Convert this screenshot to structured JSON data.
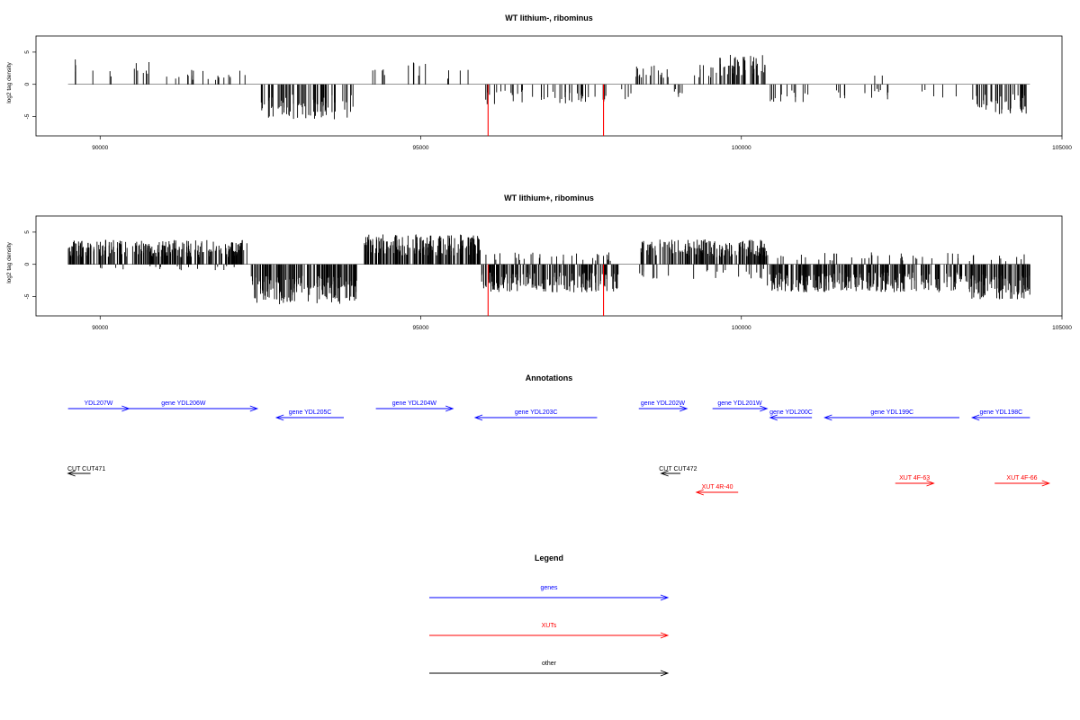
{
  "colors": {
    "genes": "#0000ff",
    "xuts": "#ff0000",
    "other": "#000000",
    "signal": "#000000",
    "highlight": "#ff0000"
  },
  "chart_data": [
    {
      "type": "bar",
      "title": "WT lithium-, ribominus",
      "ylabel": "log2 tag density",
      "xlim": [
        89000,
        105000
      ],
      "ylim": [
        -8,
        7.5
      ],
      "x_ticks": [
        90000,
        95000,
        100000,
        105000
      ],
      "y_ticks": [
        -5,
        0,
        5
      ],
      "baseline_range": [
        89500,
        104500
      ],
      "highlights": [
        {
          "x": 96050,
          "value": -8
        },
        {
          "x": 97850,
          "value": -8
        }
      ],
      "segments": [
        {
          "x0": 89550,
          "x1": 89650,
          "sign": 1,
          "mean": 2.5,
          "n": 3
        },
        {
          "x0": 89800,
          "x1": 90300,
          "sign": 1,
          "mean": 1.5,
          "n": 3
        },
        {
          "x0": 90500,
          "x1": 90800,
          "sign": 1,
          "mean": 2.5,
          "n": 7
        },
        {
          "x0": 90800,
          "x1": 92300,
          "sign": 1,
          "mean": 1.5,
          "n": 22
        },
        {
          "x0": 92500,
          "x1": 93950,
          "sign": -1,
          "mean": 3.5,
          "n": 75
        },
        {
          "x0": 94200,
          "x1": 94500,
          "sign": 1,
          "mean": 1.5,
          "n": 5
        },
        {
          "x0": 94800,
          "x1": 95100,
          "sign": 1,
          "mean": 2.5,
          "n": 6
        },
        {
          "x0": 95300,
          "x1": 95900,
          "sign": 1,
          "mean": 1.5,
          "n": 4
        },
        {
          "x0": 95950,
          "x1": 97900,
          "sign": -1,
          "mean": 2,
          "n": 45
        },
        {
          "x0": 98000,
          "x1": 98300,
          "sign": -1,
          "mean": 1.5,
          "n": 4
        },
        {
          "x0": 98350,
          "x1": 98950,
          "sign": 1,
          "mean": 2,
          "n": 18
        },
        {
          "x0": 98950,
          "x1": 99250,
          "sign": -1,
          "mean": 1.5,
          "n": 6
        },
        {
          "x0": 99250,
          "x1": 99550,
          "sign": 1,
          "mean": 2,
          "n": 8
        },
        {
          "x0": 99550,
          "x1": 100400,
          "sign": 1,
          "mean": 3,
          "n": 50
        },
        {
          "x0": 100400,
          "x1": 101100,
          "sign": -1,
          "mean": 2,
          "n": 14
        },
        {
          "x0": 101300,
          "x1": 102400,
          "sign": -1,
          "mean": 1.5,
          "n": 14
        },
        {
          "x0": 101750,
          "x1": 102500,
          "sign": 1,
          "mean": 1.5,
          "n": 2
        },
        {
          "x0": 102600,
          "x1": 103400,
          "sign": -1,
          "mean": 1.5,
          "n": 5
        },
        {
          "x0": 103600,
          "x1": 104450,
          "sign": -1,
          "mean": 3,
          "n": 45
        }
      ]
    },
    {
      "type": "bar",
      "title": "WT lithium+, ribominus",
      "ylabel": "log2 tag density",
      "xlim": [
        89000,
        105000
      ],
      "ylim": [
        -8,
        7.5
      ],
      "x_ticks": [
        90000,
        95000,
        100000,
        105000
      ],
      "y_ticks": [
        -5,
        0,
        5
      ],
      "baseline_range": [
        89500,
        104500
      ],
      "highlights": [
        {
          "x": 96050,
          "value": -8
        },
        {
          "x": 97850,
          "value": -8
        }
      ],
      "segments": [
        {
          "x0": 89500,
          "x1": 92300,
          "sign": 1,
          "mean": 2.5,
          "n": 260
        },
        {
          "x0": 89500,
          "x1": 92300,
          "sign": -1,
          "mean": 0.6,
          "n": 18
        },
        {
          "x0": 92350,
          "x1": 94000,
          "sign": -1,
          "mean": 4,
          "n": 160
        },
        {
          "x0": 94100,
          "x1": 95950,
          "sign": 1,
          "mean": 3,
          "n": 190
        },
        {
          "x0": 95950,
          "x1": 98100,
          "sign": -1,
          "mean": 2.8,
          "n": 180
        },
        {
          "x0": 96000,
          "x1": 98000,
          "sign": 1,
          "mean": 1.2,
          "n": 30
        },
        {
          "x0": 98400,
          "x1": 100400,
          "sign": 1,
          "mean": 2.5,
          "n": 170
        },
        {
          "x0": 98400,
          "x1": 100400,
          "sign": -1,
          "mean": 1.5,
          "n": 25
        },
        {
          "x0": 100400,
          "x1": 103500,
          "sign": -1,
          "mean": 2.8,
          "n": 270
        },
        {
          "x0": 100400,
          "x1": 103500,
          "sign": 1,
          "mean": 1.2,
          "n": 35
        },
        {
          "x0": 103500,
          "x1": 104500,
          "sign": -1,
          "mean": 3.5,
          "n": 100
        },
        {
          "x0": 103500,
          "x1": 104500,
          "sign": 1,
          "mean": 1,
          "n": 10
        }
      ]
    }
  ],
  "annotations": {
    "title": "Annotations",
    "genes": [
      {
        "label": "YDL207W",
        "start": 89500,
        "end": 90450,
        "dir": "right",
        "row": 0
      },
      {
        "label": "gene YDL206W",
        "start": 90150,
        "end": 92450,
        "dir": "right",
        "row": 0
      },
      {
        "label": "gene YDL205C",
        "start": 92750,
        "end": 93800,
        "dir": "left",
        "row": 1
      },
      {
        "label": "gene YDL204W",
        "start": 94300,
        "end": 95500,
        "dir": "right",
        "row": 0
      },
      {
        "label": "gene YDL203C",
        "start": 95850,
        "end": 97750,
        "dir": "left",
        "row": 1
      },
      {
        "label": "gene YDL202W",
        "start": 98400,
        "end": 99150,
        "dir": "right",
        "row": 0
      },
      {
        "label": "gene YDL201W",
        "start": 99550,
        "end": 100400,
        "dir": "right",
        "row": 0
      },
      {
        "label": "gene YDL200C",
        "start": 100450,
        "end": 101100,
        "dir": "left",
        "row": 1
      },
      {
        "label": "gene YDL199C",
        "start": 101300,
        "end": 103400,
        "dir": "left",
        "row": 1
      },
      {
        "label": "gene YDL198C",
        "start": 103600,
        "end": 104500,
        "dir": "left",
        "row": 1
      }
    ],
    "other": [
      {
        "label": "CUT CUT471",
        "start": 89500,
        "end": 89850,
        "dir": "left"
      },
      {
        "label": "CUT CUT472",
        "start": 98750,
        "end": 99050,
        "dir": "left"
      }
    ],
    "xuts": [
      {
        "label": "XUT 4R-40",
        "start": 99300,
        "end": 99950,
        "dir": "left"
      },
      {
        "label": "XUT 4F-63",
        "start": 102400,
        "end": 103000,
        "dir": "right"
      },
      {
        "label": "XUT 4F-66",
        "start": 103950,
        "end": 104800,
        "dir": "right"
      }
    ]
  },
  "legend": {
    "title": "Legend",
    "items": [
      {
        "label": "genes",
        "key": "genes"
      },
      {
        "label": "XUTs",
        "key": "xuts"
      },
      {
        "label": "other",
        "key": "other"
      }
    ]
  }
}
